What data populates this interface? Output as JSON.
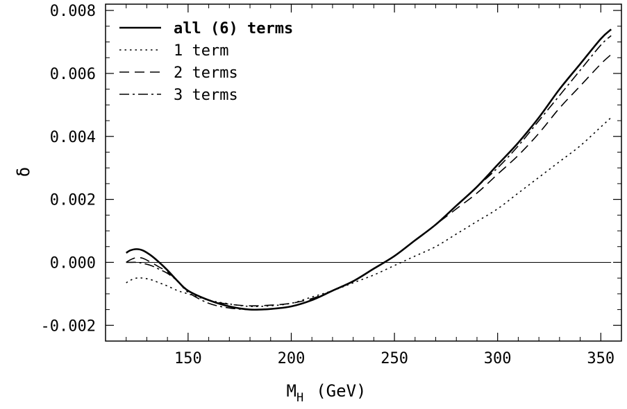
{
  "chart_data": {
    "type": "line",
    "xlabel": "M",
    "xlabel_subscript": "H",
    "xlabel_unit": "(GeV)",
    "ylabel": "δ",
    "xlim": [
      110,
      360
    ],
    "ylim": [
      -0.0025,
      0.0082
    ],
    "xticks": [
      150,
      200,
      250,
      300,
      350
    ],
    "xtick_labels": [
      "150",
      "200",
      "250",
      "300",
      "350"
    ],
    "yticks": [
      -0.002,
      0.0,
      0.002,
      0.004,
      0.006,
      0.008
    ],
    "ytick_labels": [
      "-0.002",
      "0.000",
      "0.002",
      "0.004",
      "0.006",
      "0.008"
    ],
    "zero_line": 0.0,
    "grid": false,
    "legend_position": "top-left",
    "series": [
      {
        "name": "all (6) terms",
        "style": "solid-bold",
        "color": "#000000",
        "x": [
          120,
          122,
          125,
          128,
          132,
          136,
          140,
          145,
          150,
          160,
          170,
          180,
          190,
          200,
          210,
          220,
          230,
          240,
          250,
          260,
          270,
          280,
          290,
          300,
          310,
          320,
          330,
          340,
          350,
          355
        ],
        "y": [
          0.0003,
          0.00038,
          0.00042,
          0.00038,
          0.00022,
          0.0,
          -0.00025,
          -0.0006,
          -0.0009,
          -0.0012,
          -0.0014,
          -0.0015,
          -0.00148,
          -0.0014,
          -0.0012,
          -0.0009,
          -0.0006,
          -0.0002,
          0.0002,
          0.0007,
          0.0012,
          0.0018,
          0.0024,
          0.0031,
          0.0038,
          0.0046,
          0.0055,
          0.0063,
          0.0071,
          0.0074
        ]
      },
      {
        "name": "1 term",
        "style": "dotted",
        "color": "#000000",
        "x": [
          120,
          122,
          125,
          128,
          132,
          136,
          140,
          145,
          150,
          160,
          170,
          180,
          190,
          200,
          210,
          220,
          230,
          240,
          250,
          260,
          270,
          280,
          290,
          300,
          310,
          320,
          330,
          340,
          350,
          355
        ],
        "y": [
          -0.00065,
          -0.00057,
          -0.0005,
          -0.0005,
          -0.00055,
          -0.00065,
          -0.00075,
          -0.0009,
          -0.001,
          -0.0012,
          -0.00132,
          -0.0014,
          -0.00138,
          -0.0013,
          -0.0011,
          -0.0009,
          -0.00065,
          -0.0004,
          -0.0001,
          0.0002,
          0.0005,
          0.0009,
          0.0013,
          0.0017,
          0.0022,
          0.0027,
          0.0032,
          0.0037,
          0.0043,
          0.0046
        ]
      },
      {
        "name": "2 terms",
        "style": "dashed",
        "color": "#000000",
        "x": [
          120,
          122,
          125,
          128,
          132,
          136,
          140,
          145,
          150,
          160,
          170,
          180,
          190,
          200,
          210,
          220,
          230,
          240,
          250,
          260,
          270,
          280,
          290,
          300,
          310,
          320,
          330,
          340,
          350,
          355
        ],
        "y": [
          0.0,
          8e-05,
          0.00015,
          0.00013,
          0.0,
          -0.00015,
          -0.0003,
          -0.0006,
          -0.0009,
          -0.0012,
          -0.00133,
          -0.00138,
          -0.00136,
          -0.0013,
          -0.00115,
          -0.0009,
          -0.0006,
          -0.0002,
          0.0002,
          0.0007,
          0.0012,
          0.0017,
          0.0022,
          0.0028,
          0.0034,
          0.0041,
          0.0049,
          0.0056,
          0.0063,
          0.0066
        ]
      },
      {
        "name": "3 terms",
        "style": "dashdot",
        "color": "#000000",
        "x": [
          120,
          122,
          125,
          128,
          132,
          136,
          140,
          145,
          150,
          160,
          170,
          180,
          190,
          200,
          210,
          220,
          230,
          240,
          250,
          260,
          270,
          280,
          290,
          300,
          310,
          320,
          330,
          340,
          350,
          355
        ],
        "y": [
          0.0,
          0.0,
          0.0,
          -3e-05,
          -0.0001,
          -0.00022,
          -0.00035,
          -0.0006,
          -0.00095,
          -0.0013,
          -0.00145,
          -0.0015,
          -0.00148,
          -0.0014,
          -0.0012,
          -0.0009,
          -0.0006,
          -0.0002,
          0.0002,
          0.0007,
          0.0012,
          0.0018,
          0.0024,
          0.003,
          0.0037,
          0.0045,
          0.0053,
          0.0061,
          0.0069,
          0.0072
        ]
      }
    ]
  }
}
